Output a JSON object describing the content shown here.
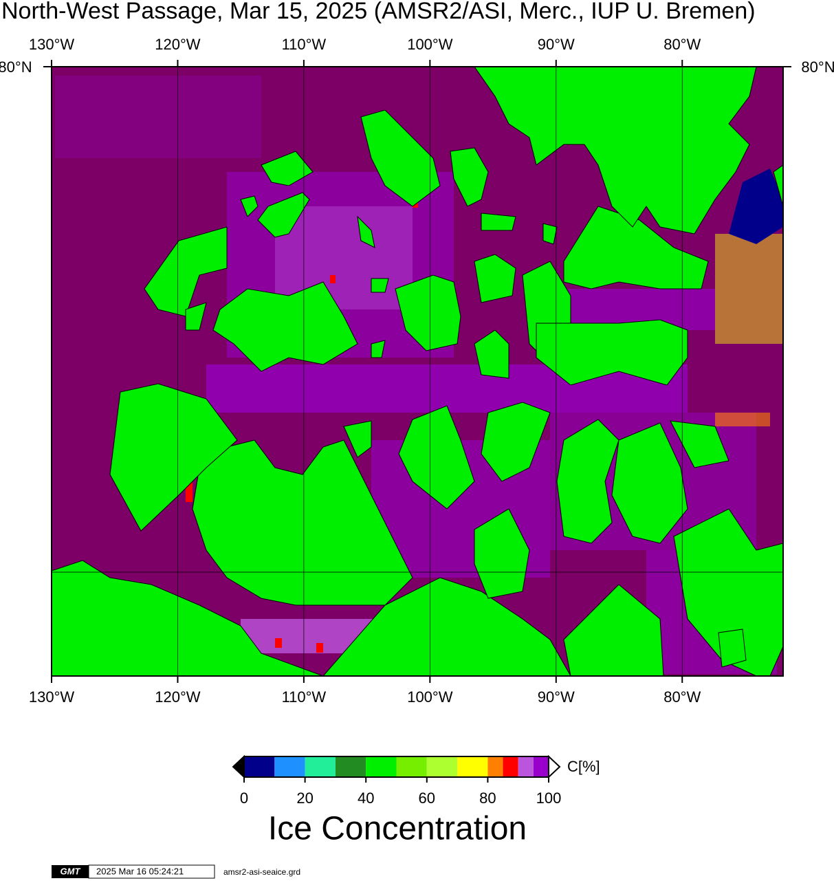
{
  "title": "North-West Passage, Mar 15, 2025 (AMSR2/ASI, Merc., IUP U. Bremen)",
  "map": {
    "lonlim": [
      -130,
      -72
    ],
    "lonticks": [
      {
        "value": -130,
        "label": "130°W"
      },
      {
        "value": -120,
        "label": "120°W"
      },
      {
        "value": -110,
        "label": "110°W"
      },
      {
        "value": -100,
        "label": "100°W"
      },
      {
        "value": -90,
        "label": "90°W"
      },
      {
        "value": -80,
        "label": "80°W"
      }
    ],
    "lat_label": "80°N"
  },
  "colorbar": {
    "type": "colorbar",
    "lim": [
      0,
      100
    ],
    "bins": [
      0,
      10,
      20,
      30,
      40,
      50,
      60,
      70,
      80,
      85,
      90,
      95,
      100
    ],
    "colors": [
      "#00008b",
      "#1e90ff",
      "#22ee99",
      "#228b22",
      "#00ee00",
      "#76ee00",
      "#adff2f",
      "#ffff00",
      "#ff8000",
      "#ff0000",
      "#bb55dd",
      "#9900cc"
    ],
    "ticks": [
      0,
      20,
      40,
      60,
      80,
      100
    ],
    "unit_label": "C[%]",
    "caption": "Ice Concentration"
  },
  "footer": {
    "logo": "GMT",
    "timestamp": "2025 Mar 16 05:24:21",
    "file": "amsr2-asi-seaice.grd"
  }
}
